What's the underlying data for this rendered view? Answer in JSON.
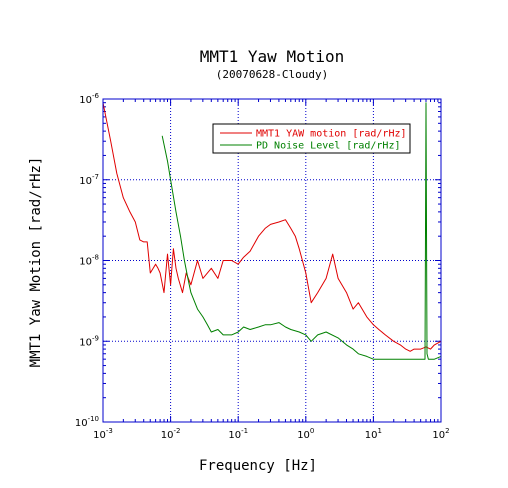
{
  "chart_data": {
    "type": "line",
    "title": "MMT1 Yaw Motion",
    "subtitle": "(20070628-Cloudy)",
    "xlabel": "Frequency [Hz]",
    "ylabel": "MMT1 Yaw Motion [rad/rHz]",
    "x_scale": "log",
    "y_scale": "log",
    "xlim": [
      0.001,
      100
    ],
    "ylim": [
      1e-10,
      1e-06
    ],
    "x_ticks": [
      {
        "base": "10",
        "exp": "-3"
      },
      {
        "base": "10",
        "exp": "-2"
      },
      {
        "base": "10",
        "exp": "-1"
      },
      {
        "base": "10",
        "exp": "0"
      },
      {
        "base": "10",
        "exp": "1"
      },
      {
        "base": "10",
        "exp": "2"
      }
    ],
    "y_ticks": [
      {
        "base": "10",
        "exp": "-10"
      },
      {
        "base": "10",
        "exp": "-9"
      },
      {
        "base": "10",
        "exp": "-8"
      },
      {
        "base": "10",
        "exp": "-7"
      },
      {
        "base": "10",
        "exp": "-6"
      }
    ],
    "grid": true,
    "legend_position": "top-right",
    "frame_color": "#0000cc",
    "grid_color": "#0000cc",
    "series": [
      {
        "name": "MMT1 YAW motion [rad/rHz]",
        "color": "#e00000",
        "x": [
          0.001,
          0.0013,
          0.0016,
          0.002,
          0.0025,
          0.003,
          0.0035,
          0.004,
          0.0045,
          0.005,
          0.006,
          0.0065,
          0.007,
          0.008,
          0.009,
          0.01,
          0.011,
          0.012,
          0.013,
          0.015,
          0.017,
          0.02,
          0.025,
          0.03,
          0.04,
          0.05,
          0.06,
          0.08,
          0.1,
          0.12,
          0.15,
          0.2,
          0.25,
          0.3,
          0.4,
          0.5,
          0.6,
          0.7,
          0.8,
          1.0,
          1.2,
          1.5,
          2.0,
          2.5,
          3.0,
          4.0,
          5.0,
          6.0,
          8.0,
          10.0,
          12.0,
          15.0,
          20.0,
          25.0,
          30.0,
          35.0,
          40.0,
          50.0,
          60.0,
          70.0,
          80.0,
          100.0
        ],
        "values": [
          9e-07,
          3e-07,
          1.2e-07,
          6e-08,
          4e-08,
          3e-08,
          1.8e-08,
          1.7e-08,
          1.7e-08,
          7e-09,
          9e-09,
          8e-09,
          7e-09,
          4e-09,
          1.2e-08,
          5e-09,
          1.4e-08,
          8e-09,
          6e-09,
          4e-09,
          7e-09,
          5e-09,
          1e-08,
          6e-09,
          8e-09,
          6e-09,
          1e-08,
          1e-08,
          9e-09,
          1.1e-08,
          1.3e-08,
          2e-08,
          2.5e-08,
          2.8e-08,
          3e-08,
          3.2e-08,
          2.5e-08,
          2e-08,
          1.4e-08,
          7e-09,
          3e-09,
          4e-09,
          6e-09,
          1.2e-08,
          6e-09,
          4e-09,
          2.5e-09,
          3e-09,
          2e-09,
          1.6e-09,
          1.4e-09,
          1.2e-09,
          1e-09,
          9e-10,
          8e-10,
          7.5e-10,
          8e-10,
          8e-10,
          8.5e-10,
          8e-10,
          9e-10,
          1e-09
        ]
      },
      {
        "name": "PD Noise Level [rad/rHz]",
        "color": "#008000",
        "x": [
          0.0075,
          0.009,
          0.01,
          0.012,
          0.014,
          0.016,
          0.018,
          0.02,
          0.025,
          0.03,
          0.035,
          0.04,
          0.05,
          0.06,
          0.08,
          0.1,
          0.12,
          0.15,
          0.2,
          0.25,
          0.3,
          0.4,
          0.5,
          0.6,
          0.8,
          1.0,
          1.2,
          1.5,
          2.0,
          3.0,
          4.0,
          5.0,
          6.0,
          8.0,
          10.0,
          15.0,
          20.0,
          30.0,
          40.0,
          50.0,
          55.0,
          58.0,
          60.0,
          62.0,
          65.0,
          70.0,
          80.0,
          100.0
        ],
        "values": [
          3.5e-07,
          1.7e-07,
          1e-07,
          4e-08,
          2e-08,
          1e-08,
          6e-09,
          4e-09,
          2.5e-09,
          2e-09,
          1.6e-09,
          1.3e-09,
          1.4e-09,
          1.2e-09,
          1.2e-09,
          1.3e-09,
          1.5e-09,
          1.4e-09,
          1.5e-09,
          1.6e-09,
          1.6e-09,
          1.7e-09,
          1.5e-09,
          1.4e-09,
          1.3e-09,
          1.2e-09,
          1e-09,
          1.2e-09,
          1.3e-09,
          1.1e-09,
          9e-10,
          8e-10,
          7e-10,
          6.5e-10,
          6e-10,
          6e-10,
          6e-10,
          6e-10,
          6e-10,
          6e-10,
          6e-10,
          6e-10,
          9e-07,
          7e-10,
          6e-10,
          6e-10,
          6e-10,
          6.5e-10
        ]
      }
    ]
  }
}
